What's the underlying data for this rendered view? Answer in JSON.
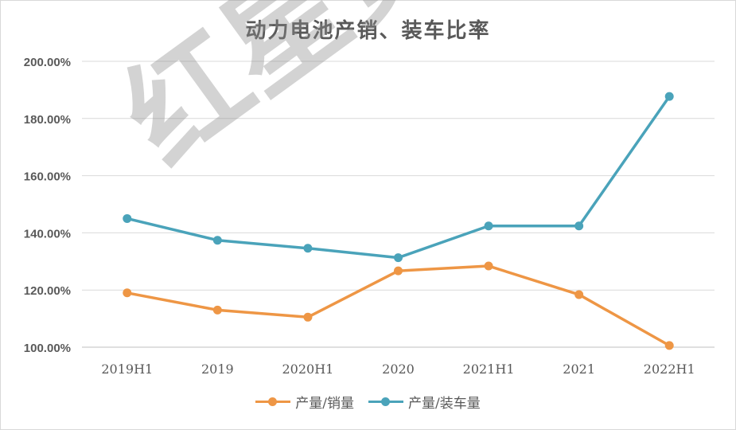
{
  "chart_data": {
    "type": "line",
    "title": "动力电池产销、装车比率",
    "categories": [
      "2019H1",
      "2019",
      "2020H1",
      "2020",
      "2021H1",
      "2021",
      "2022H1"
    ],
    "y_tick_labels": [
      "100.00%",
      "120.00%",
      "140.00%",
      "160.00%",
      "180.00%",
      "200.00%"
    ],
    "ylim": [
      100,
      200
    ],
    "grid": true,
    "legend_position": "bottom",
    "series": [
      {
        "name": "产量/销量",
        "color": "#ee9645",
        "values": [
          119.0,
          113.0,
          110.5,
          126.7,
          128.4,
          118.4,
          100.6
        ]
      },
      {
        "name": "产量/装车量",
        "color": "#4aa3ba",
        "values": [
          145.0,
          137.4,
          134.6,
          131.3,
          142.4,
          142.4,
          187.7
        ]
      }
    ]
  },
  "watermark": "红星资本局"
}
